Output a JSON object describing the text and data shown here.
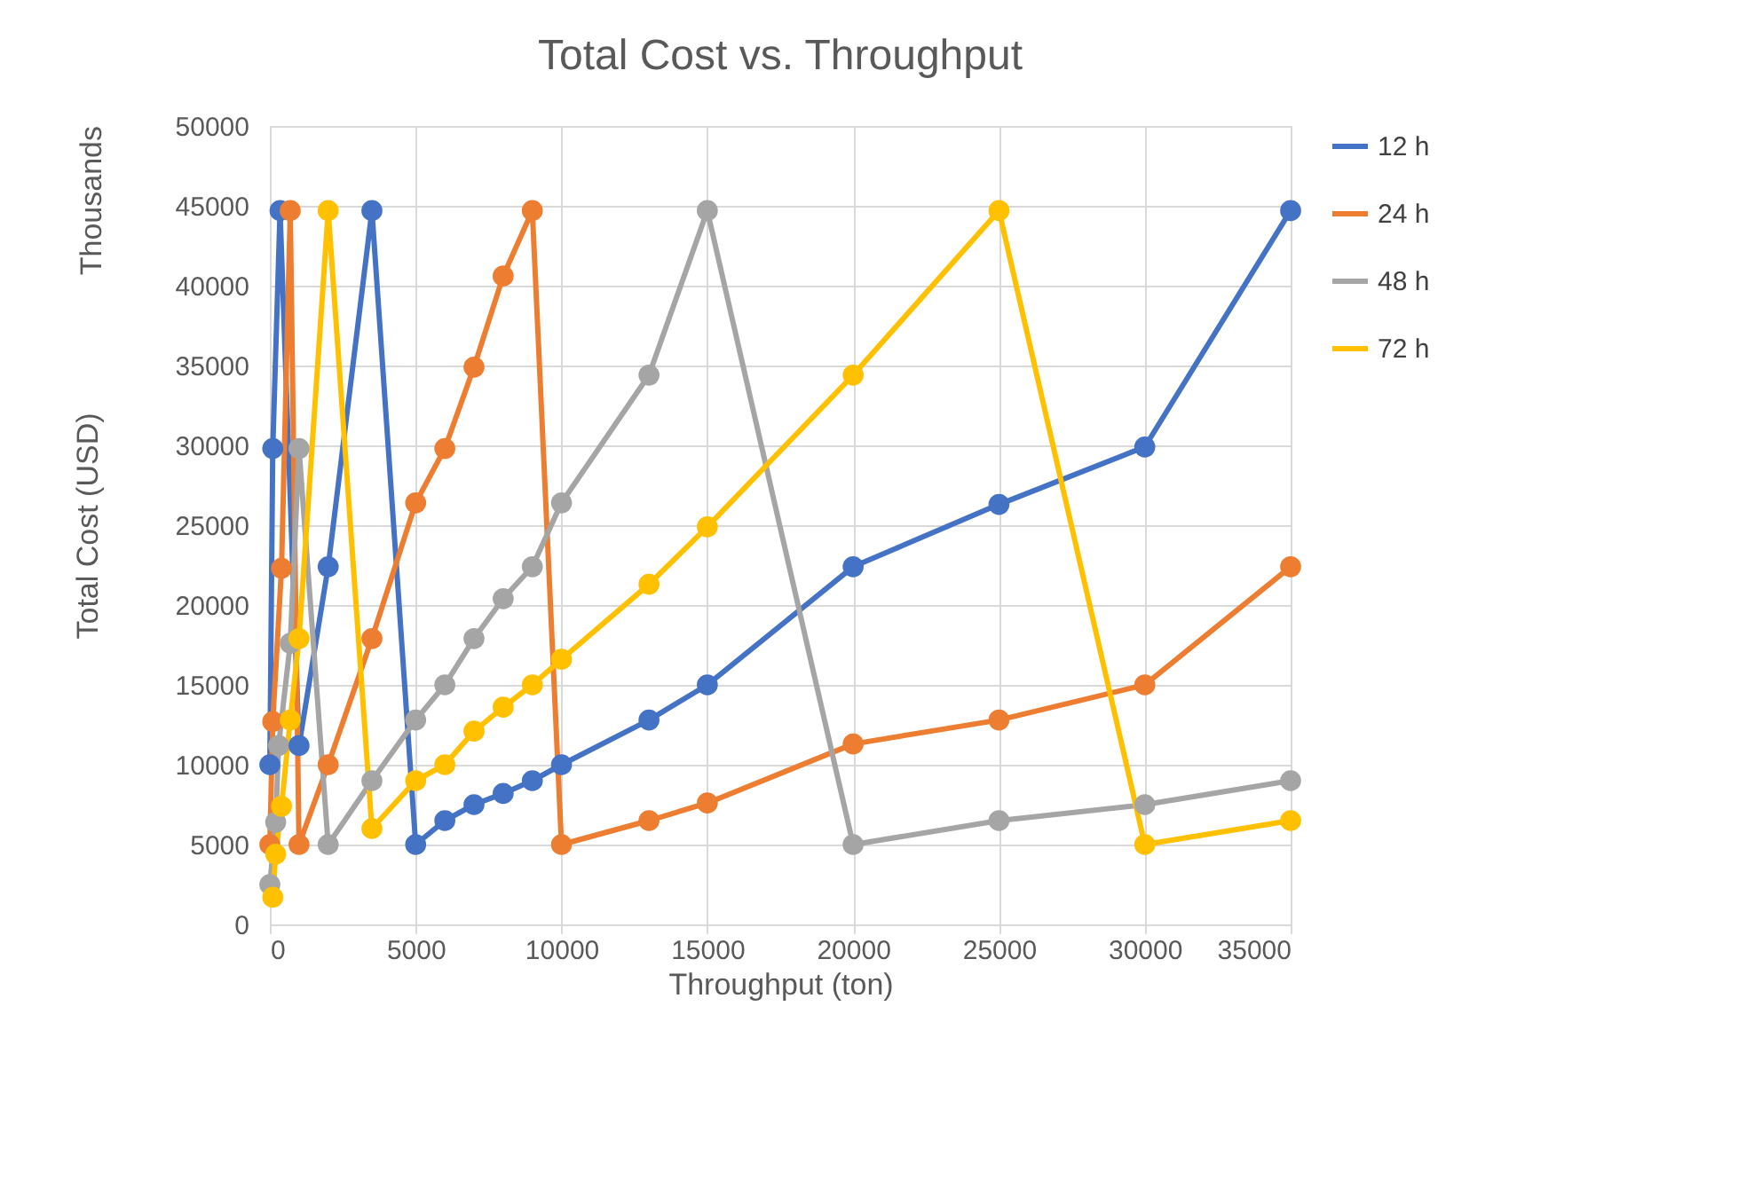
{
  "chart_data": {
    "type": "line",
    "title": "Total Cost vs. Throughput",
    "xlabel": "Throughput (ton)",
    "ylabel": "Total  Cost (USD)",
    "annotations": [
      "Thousands"
    ],
    "series": [
      {
        "name": "12 h",
        "color": "#4472c4",
        "x": [
          0,
          100,
          350,
          1000,
          2000,
          3500,
          5000,
          6000,
          7000,
          8000,
          9000,
          10000,
          13000,
          15000,
          20000,
          25000,
          30000,
          35000
        ],
        "values": [
          10000,
          29800,
          44700,
          11200,
          22400,
          44700,
          5000,
          6500,
          7500,
          8200,
          9000,
          10000,
          12800,
          15000,
          22400,
          26300,
          29900,
          44700
        ]
      },
      {
        "name": "24 h",
        "color": "#ed7d31",
        "x": [
          0,
          100,
          400,
          700,
          1000,
          2000,
          3500,
          5000,
          6000,
          7000,
          8000,
          9000,
          10000,
          13000,
          15000,
          20000,
          25000,
          30000,
          35000
        ],
        "values": [
          5000,
          12700,
          22300,
          44700,
          5000,
          10000,
          17900,
          26400,
          29800,
          34900,
          40600,
          44700,
          5000,
          6500,
          7600,
          11300,
          12800,
          15000,
          22400
        ]
      },
      {
        "name": "48 h",
        "color": "#a5a5a5",
        "x": [
          0,
          200,
          300,
          700,
          1000,
          2000,
          3500,
          5000,
          6000,
          7000,
          8000,
          9000,
          10000,
          13000,
          15000,
          20000,
          25000,
          30000,
          35000
        ],
        "values": [
          2500,
          6400,
          11200,
          17600,
          29800,
          5000,
          9000,
          12800,
          15000,
          17900,
          20400,
          22400,
          26400,
          34400,
          44700,
          5000,
          6500,
          7500,
          9000
        ]
      },
      {
        "name": "72 h",
        "color": "#ffc000",
        "x": [
          100,
          200,
          400,
          700,
          1000,
          2000,
          3500,
          5000,
          6000,
          7000,
          8000,
          9000,
          10000,
          13000,
          15000,
          20000,
          25000,
          30000,
          35000
        ],
        "values": [
          1700,
          4400,
          7400,
          12800,
          17900,
          44700,
          6000,
          9000,
          10000,
          12100,
          13600,
          15000,
          16600,
          21300,
          24900,
          34400,
          44700,
          5000,
          6500
        ]
      }
    ],
    "xlim": [
      0,
      35000
    ],
    "xticks": [
      0,
      5000,
      10000,
      15000,
      20000,
      25000,
      30000,
      35000
    ],
    "ylim": [
      0,
      50000
    ],
    "yticks": [
      0,
      5000,
      10000,
      15000,
      20000,
      25000,
      30000,
      35000,
      40000,
      45000,
      50000
    ],
    "grid": true,
    "legend": "right",
    "marker": "circle",
    "line_style": "solid"
  }
}
